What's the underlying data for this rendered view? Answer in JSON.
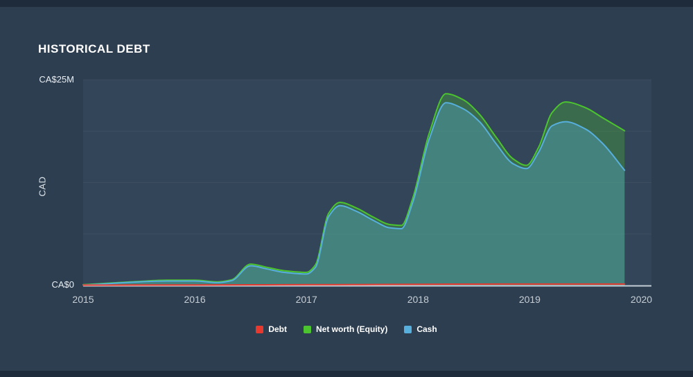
{
  "chart_data": {
    "type": "area",
    "title": "Historical Debt",
    "ylabel": "CAD",
    "legend_position": "bottom",
    "grid": true,
    "y_axis": {
      "max_label": "CA$25M",
      "zero_label": "CA$0",
      "ylim": [
        0,
        25
      ]
    },
    "x_axis": {
      "ticks": [
        "2015",
        "2016",
        "2017",
        "2018",
        "2019",
        "2020"
      ],
      "xlim": [
        2015,
        2020.09
      ]
    },
    "gridlines": [
      6.25,
      12.5,
      18.75,
      25
    ],
    "colors": {
      "background": "#2d3e50",
      "frame_bar": "#1d2b3a",
      "plot_band": "rgba(137,173,208,0.07)",
      "gridline": "rgba(255,255,255,0.05)",
      "axis_line": "rgba(222,230,237,0.85)",
      "debt": "#e8392f",
      "net_worth": "#4cc42f",
      "cash": "#57afdd"
    },
    "series": [
      {
        "name": "Debt",
        "color": "#e8392f",
        "fill": null,
        "x": [
          2015.0,
          2015.5,
          2016.0,
          2016.5,
          2017.0,
          2017.5,
          2018.0,
          2018.5,
          2019.0,
          2019.5,
          2019.85
        ],
        "y": [
          0.05,
          0.06,
          0.07,
          0.08,
          0.1,
          0.12,
          0.15,
          0.17,
          0.18,
          0.18,
          0.18
        ]
      },
      {
        "name": "Net worth (Equity)",
        "color": "#4cc42f",
        "fill": "rgba(76,196,47,0.30)",
        "x": [
          2015.0,
          2015.25,
          2015.5,
          2015.75,
          2016.0,
          2016.2,
          2016.33,
          2016.5,
          2016.65,
          2016.8,
          2017.0,
          2017.08,
          2017.2,
          2017.3,
          2017.45,
          2017.6,
          2017.75,
          2017.85,
          2017.95,
          2018.1,
          2018.25,
          2018.4,
          2018.55,
          2018.7,
          2018.85,
          2018.97,
          2019.08,
          2019.2,
          2019.32,
          2019.5,
          2019.65,
          2019.85
        ],
        "y": [
          0.1,
          0.3,
          0.5,
          0.65,
          0.65,
          0.45,
          0.7,
          2.6,
          2.2,
          1.8,
          1.6,
          2.5,
          8.8,
          10.1,
          9.4,
          8.3,
          7.4,
          7.3,
          10.5,
          18.5,
          23.3,
          22.6,
          20.8,
          18.0,
          15.4,
          14.6,
          16.8,
          21.0,
          22.3,
          21.6,
          20.4,
          18.8
        ]
      },
      {
        "name": "Cash",
        "color": "#57afdd",
        "fill": "rgba(87,175,221,0.34)",
        "x": [
          2015.0,
          2015.25,
          2015.5,
          2015.75,
          2016.0,
          2016.2,
          2016.33,
          2016.5,
          2016.65,
          2016.8,
          2017.0,
          2017.08,
          2017.2,
          2017.3,
          2017.45,
          2017.6,
          2017.75,
          2017.85,
          2017.95,
          2018.1,
          2018.25,
          2018.4,
          2018.55,
          2018.7,
          2018.85,
          2018.97,
          2019.08,
          2019.2,
          2019.32,
          2019.5,
          2019.65,
          2019.85
        ],
        "y": [
          0.05,
          0.25,
          0.45,
          0.55,
          0.55,
          0.35,
          0.6,
          2.4,
          2.0,
          1.6,
          1.4,
          2.2,
          8.4,
          9.7,
          9.0,
          7.9,
          7.0,
          6.9,
          10.0,
          17.8,
          22.2,
          21.5,
          19.9,
          17.2,
          14.8,
          14.2,
          16.2,
          19.4,
          19.9,
          19.0,
          17.3,
          14.0
        ]
      }
    ]
  }
}
